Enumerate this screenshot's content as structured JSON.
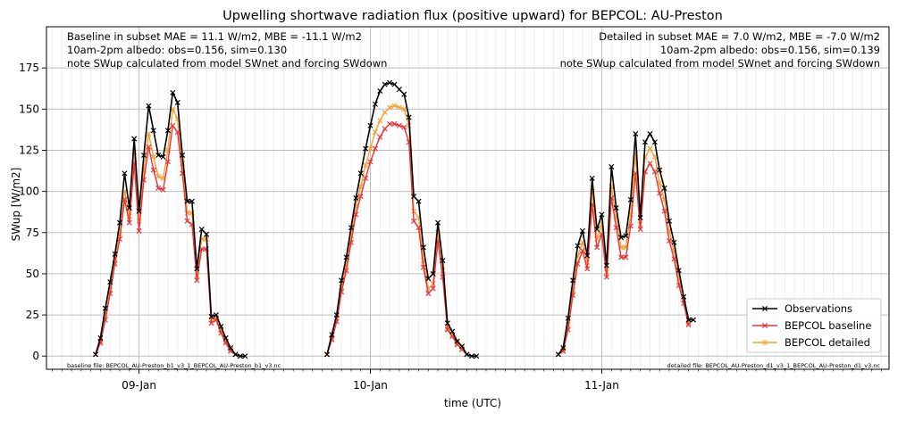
{
  "chart_data": {
    "type": "line",
    "title": "Upwelling shortwave radiation flux (positive upward) for BEPCOL: AU-Preston",
    "xlabel": "time (UTC)",
    "ylabel": "SWup [W/m2]",
    "ylim": [
      -8,
      200
    ],
    "yticks": [
      0,
      25,
      50,
      75,
      100,
      125,
      150,
      175
    ],
    "xlim": [
      -9.6,
      77.8
    ],
    "xtick_hours": [
      0,
      24,
      48
    ],
    "xtick_labels": [
      "09-Jan",
      "10-Jan",
      "11-Jan"
    ],
    "minor_tick_hours": 1,
    "grid": true,
    "legend_position": "lower-right",
    "annotations": {
      "left": [
        "Baseline in subset MAE = 11.1 W/m2, MBE = -11.1 W/m2",
        "10am-2pm albedo: obs=0.156, sim=0.130",
        "note SWup calculated from model SWnet and forcing SWdown"
      ],
      "right": [
        "Detailed in subset MAE = 7.0 W/m2, MBE = -7.0 W/m2",
        "10am-2pm albedo: obs=0.156, sim=0.139",
        "note SWup calculated from model SWnet and forcing SWdown"
      ],
      "footer_left": "baseline file: BEPCOL_AU-Preston_b1_v3_1_BEPCOL_AU-Preston_b1_v3.nc",
      "footer_right": "detailed file: BEPCOL_AU-Preston_d1_v3_1_BEPCOL_AU-Preston_d1_v3.nc"
    },
    "series": [
      {
        "name": "Observations",
        "color": "#000000",
        "segments": [
          {
            "x": [
              -4.5,
              -4,
              -3.5,
              -3,
              -2.5,
              -2,
              -1.5,
              -1,
              -0.5,
              0,
              0.5,
              1,
              1.5,
              2,
              2.5,
              3,
              3.5,
              4,
              4.5,
              5,
              5.5,
              6,
              6.5,
              7,
              7.5,
              8,
              8.5,
              9,
              9.5,
              10,
              10.5,
              11
            ],
            "y": [
              1,
              11,
              29,
              45,
              62,
              81,
              111,
              90,
              132,
              88,
              122,
              152,
              137,
              122,
              121,
              137,
              160,
              154,
              122,
              94,
              94,
              53,
              77,
              74,
              24,
              25,
              18,
              11,
              5,
              1,
              0,
              0
            ]
          },
          {
            "x": [
              19.5,
              20,
              20.5,
              21,
              21.5,
              22,
              22.5,
              23,
              23.5,
              24,
              24.5,
              25,
              25.5,
              26,
              26.5,
              27,
              27.5,
              28,
              28.5,
              29,
              29.5,
              30,
              30.5,
              31,
              31.5,
              32,
              32.5,
              33,
              33.5,
              34,
              34.5,
              35
            ],
            "y": [
              1,
              13,
              25,
              46,
              60,
              78,
              96,
              111,
              126,
              140,
              153,
              161,
              165,
              166,
              165,
              162,
              159,
              145,
              97,
              94,
              66,
              47,
              50,
              81,
              58,
              20,
              15,
              9,
              6,
              1,
              0,
              0
            ]
          },
          {
            "x": [
              43.5,
              44,
              44.5,
              45,
              45.5,
              46,
              46.5,
              47,
              47.5,
              48,
              48.5,
              49,
              49.5,
              50,
              50.5,
              51,
              51.5,
              52,
              52.5,
              53,
              53.5,
              54,
              54.5,
              55,
              55.5,
              56,
              56.5,
              57,
              57.5
            ],
            "y": [
              1,
              5,
              23,
              46,
              67,
              76,
              61,
              108,
              77,
              86,
              55,
              115,
              90,
              72,
              73,
              95,
              135,
              84,
              130,
              135,
              130,
              113,
              102,
              82,
              69,
              52,
              36,
              22,
              22
            ]
          }
        ]
      },
      {
        "name": "BEPCOL baseline",
        "color": "#e8333b",
        "segments": [
          {
            "x": [
              -4.5,
              -4,
              -3.5,
              -3,
              -2.5,
              -2,
              -1.5,
              -1,
              -0.5,
              0,
              0.5,
              1,
              1.5,
              2,
              2.5,
              3,
              3.5,
              4,
              4.5,
              5,
              5.5,
              6,
              6.5,
              7,
              7.5,
              8,
              8.5,
              9,
              9.5,
              10,
              10.5
            ],
            "y": [
              1,
              8,
              22,
              38,
              56,
              71,
              95,
              81,
              117,
              76,
              107,
              127,
              113,
              102,
              101,
              118,
              140,
              136,
              111,
              82,
              80,
              46,
              65,
              65,
              20,
              22,
              14,
              8,
              3,
              1,
              0
            ]
          },
          {
            "x": [
              19.5,
              20,
              20.5,
              21,
              21.5,
              22,
              22.5,
              23,
              23.5,
              24,
              24.5,
              25,
              25.5,
              26,
              26.5,
              27,
              27.5,
              28,
              28.5,
              29,
              29.5,
              30,
              30.5,
              31,
              31.5,
              32,
              32.5,
              33,
              33.5,
              34
            ],
            "y": [
              1,
              10,
              21,
              39,
              52,
              69,
              86,
              97,
              108,
              118,
              126,
              133,
              138,
              141,
              141,
              140,
              139,
              130,
              82,
              78,
              54,
              38,
              41,
              70,
              48,
              16,
              12,
              7,
              4,
              1
            ]
          },
          {
            "x": [
              43.5,
              44,
              44.5,
              45,
              45.5,
              46,
              46.5,
              47,
              47.5,
              48,
              48.5,
              49,
              49.5,
              50,
              50.5,
              51,
              51.5,
              52,
              52.5,
              53,
              53.5,
              54,
              54.5,
              55,
              55.5,
              56,
              56.5,
              57
            ],
            "y": [
              1,
              3,
              16,
              37,
              56,
              64,
              53,
              92,
              66,
              74,
              48,
              96,
              78,
              60,
              60,
              79,
              111,
              77,
              112,
              117,
              112,
              99,
              88,
              70,
              59,
              43,
              32,
              19
            ]
          }
        ]
      },
      {
        "name": "BEPCOL detailed",
        "color": "#f5a030",
        "segments": [
          {
            "x": [
              -4.5,
              -4,
              -3.5,
              -3,
              -2.5,
              -2,
              -1.5,
              -1,
              -0.5,
              0,
              0.5,
              1,
              1.5,
              2,
              2.5,
              3,
              3.5,
              4,
              4.5,
              5,
              5.5,
              6,
              6.5,
              7,
              7.5,
              8,
              8.5,
              9,
              9.5,
              10,
              10.5
            ],
            "y": [
              1,
              9,
              25,
              40,
              59,
              74,
              100,
              85,
              124,
              82,
              113,
              135,
              121,
              109,
              108,
              125,
              150,
              144,
              117,
              87,
              87,
              49,
              71,
              71,
              22,
              23,
              16,
              9,
              4,
              1,
              0
            ]
          },
          {
            "x": [
              19.5,
              20,
              20.5,
              21,
              21.5,
              22,
              22.5,
              23,
              23.5,
              24,
              24.5,
              25,
              25.5,
              26,
              26.5,
              27,
              27.5,
              28,
              28.5,
              29,
              29.5,
              30,
              30.5,
              31,
              31.5,
              32,
              32.5,
              33,
              33.5,
              34
            ],
            "y": [
              1,
              11,
              23,
              42,
              56,
              73,
              91,
              103,
              116,
              126,
              136,
              143,
              148,
              151,
              152,
              151,
              150,
              140,
              88,
              84,
              58,
              41,
              44,
              75,
              52,
              17,
              13,
              8,
              5,
              1
            ]
          },
          {
            "x": [
              43.5,
              44,
              44.5,
              45,
              45.5,
              46,
              46.5,
              47,
              47.5,
              48,
              48.5,
              49,
              49.5,
              50,
              50.5,
              51,
              51.5,
              52,
              52.5,
              53,
              53.5,
              54,
              54.5,
              55,
              55.5,
              56,
              56.5,
              57
            ],
            "y": [
              1,
              4,
              19,
              40,
              61,
              69,
              57,
              100,
              71,
              80,
              51,
              103,
              84,
              66,
              66,
              86,
              123,
              80,
              121,
              126,
              121,
              105,
              95,
              76,
              64,
              47,
              34,
              20
            ]
          }
        ]
      }
    ]
  }
}
